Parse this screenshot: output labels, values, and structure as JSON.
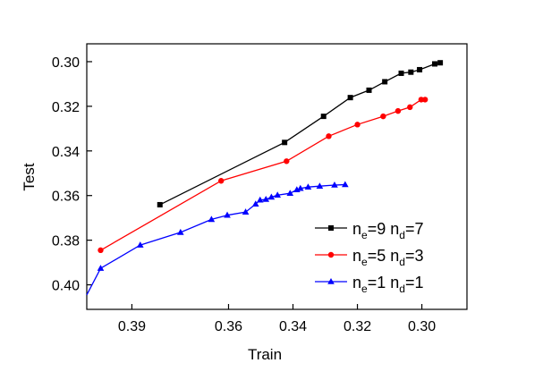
{
  "chart_data": {
    "type": "line",
    "title": "",
    "xlabel": "Train",
    "ylabel": "Test",
    "x_reversed": true,
    "y_reversed": true,
    "xlim": [
      0.404,
      0.286
    ],
    "ylim": [
      0.292,
      0.411
    ],
    "xticks": [
      {
        "value": 0.39,
        "label": "0.39"
      },
      {
        "value": 0.36,
        "label": "0.36"
      },
      {
        "value": 0.34,
        "label": "0.34"
      },
      {
        "value": 0.32,
        "label": "0.32"
      },
      {
        "value": 0.3,
        "label": "0.30"
      }
    ],
    "yticks": [
      {
        "value": 0.3,
        "label": "0.30"
      },
      {
        "value": 0.32,
        "label": "0.32"
      },
      {
        "value": 0.34,
        "label": "0.34"
      },
      {
        "value": 0.36,
        "label": "0.36"
      },
      {
        "value": 0.38,
        "label": "0.38"
      },
      {
        "value": 0.4,
        "label": "0.40"
      }
    ],
    "grid": false,
    "legend_position": "bottom-right",
    "series": [
      {
        "name_base": "n",
        "sub1": "e",
        "eq1": "=9 n",
        "sub2": "d",
        "eq2": "=7",
        "color": "#000000",
        "marker": "square",
        "points": [
          [
            0.3813,
            0.3641
          ],
          [
            0.3426,
            0.3362
          ],
          [
            0.3305,
            0.3245
          ],
          [
            0.3222,
            0.3161
          ],
          [
            0.3164,
            0.3128
          ],
          [
            0.3115,
            0.309
          ],
          [
            0.3064,
            0.3052
          ],
          [
            0.3034,
            0.3047
          ],
          [
            0.3007,
            0.3036
          ],
          [
            0.296,
            0.301
          ],
          [
            0.2943,
            0.3005
          ]
        ]
      },
      {
        "name_base": "n",
        "sub1": "e",
        "eq1": "=5 n",
        "sub2": "d",
        "eq2": "=3",
        "color": "#ff0000",
        "marker": "circle",
        "points": [
          [
            0.3997,
            0.3845
          ],
          [
            0.3623,
            0.3534
          ],
          [
            0.342,
            0.3446
          ],
          [
            0.3289,
            0.3334
          ],
          [
            0.32,
            0.3282
          ],
          [
            0.312,
            0.3245
          ],
          [
            0.3074,
            0.3221
          ],
          [
            0.3037,
            0.3204
          ],
          [
            0.3002,
            0.317
          ],
          [
            0.299,
            0.317
          ]
        ]
      },
      {
        "name_base": "n",
        "sub1": "e",
        "eq1": "=1 n",
        "sub2": "d",
        "eq2": "=1",
        "color": "#0000ff",
        "marker": "triangle",
        "extended_from": [
          0.404,
          0.4045
        ],
        "points": [
          [
            0.3997,
            0.3926
          ],
          [
            0.3874,
            0.3822
          ],
          [
            0.3749,
            0.3765
          ],
          [
            0.3653,
            0.3707
          ],
          [
            0.3604,
            0.3688
          ],
          [
            0.3547,
            0.3674
          ],
          [
            0.3516,
            0.3638
          ],
          [
            0.3502,
            0.362
          ],
          [
            0.3484,
            0.3617
          ],
          [
            0.3467,
            0.3607
          ],
          [
            0.3448,
            0.3598
          ],
          [
            0.3409,
            0.359
          ],
          [
            0.3388,
            0.3574
          ],
          [
            0.3377,
            0.3568
          ],
          [
            0.3353,
            0.3562
          ],
          [
            0.3317,
            0.3558
          ],
          [
            0.3271,
            0.3553
          ],
          [
            0.3238,
            0.3551
          ]
        ]
      }
    ]
  }
}
